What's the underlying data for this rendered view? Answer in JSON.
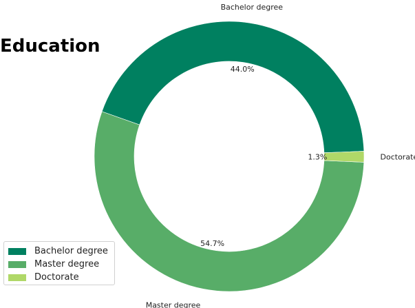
{
  "title": "Education",
  "chart_data": {
    "type": "pie",
    "variant": "donut",
    "title": "Education",
    "slices": [
      {
        "label": "Bachelor degree",
        "value": 44.0,
        "pct_label": "44.0%",
        "color": "#008060"
      },
      {
        "label": "Master degree",
        "value": 54.7,
        "pct_label": "54.7%",
        "color": "#58ad68"
      },
      {
        "label": "Doctorate",
        "value": 1.3,
        "pct_label": "1.3%",
        "color": "#b0d868"
      }
    ],
    "legend": {
      "placement": "bottom-left",
      "entries": [
        "Bachelor degree",
        "Master degree",
        "Doctorate"
      ]
    }
  }
}
